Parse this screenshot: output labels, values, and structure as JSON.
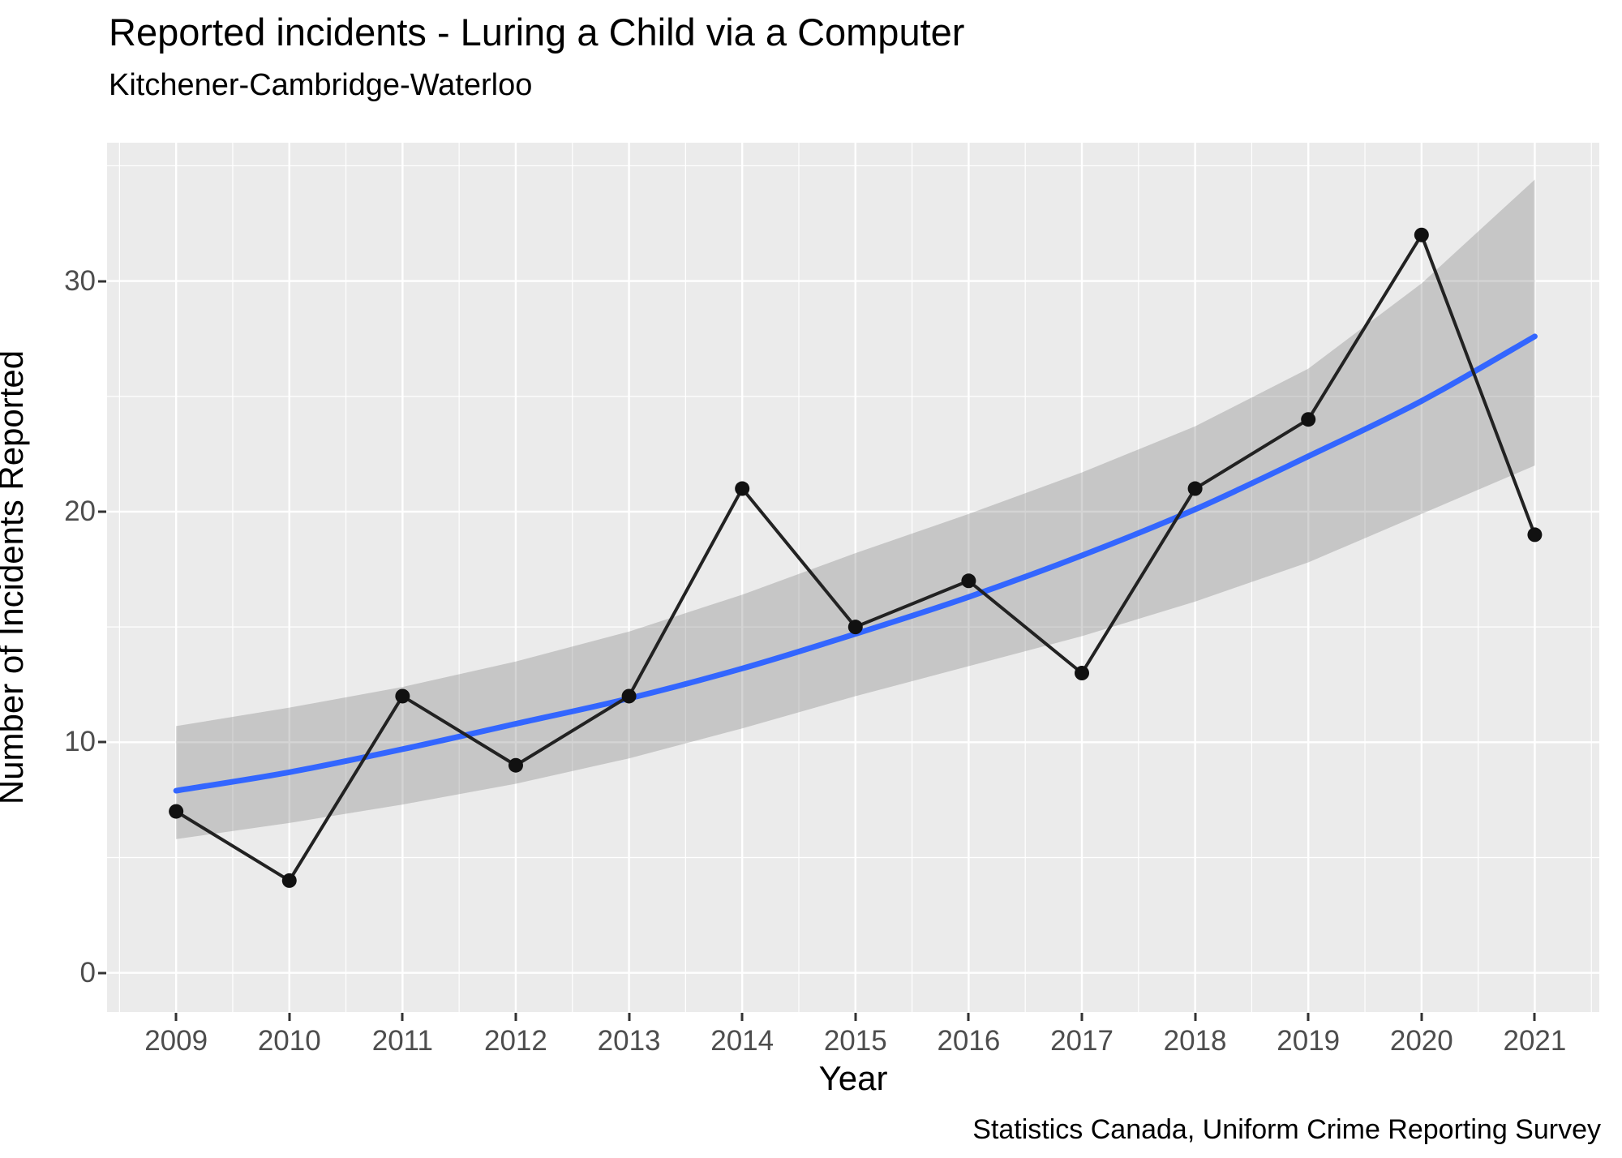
{
  "title": "Reported incidents - Luring a Child via a Computer",
  "subtitle": "Kitchener-Cambridge-Waterloo",
  "caption": "Statistics Canada, Uniform Crime Reporting Survey",
  "chart_data": {
    "type": "line",
    "title": "Reported incidents - Luring a Child via a Computer",
    "subtitle": "Kitchener-Cambridge-Waterloo",
    "xlabel": "Year",
    "ylabel": "Number of Incidents Reported",
    "caption": "Statistics Canada, Uniform Crime Reporting Survey",
    "x": [
      2009,
      2010,
      2011,
      2012,
      2013,
      2014,
      2015,
      2016,
      2017,
      2018,
      2019,
      2020,
      2021
    ],
    "series": [
      {
        "name": "reported-incidents",
        "type": "line+points",
        "color": "#222222",
        "point_color": "#111111",
        "values": [
          7,
          4,
          12,
          9,
          12,
          21,
          15,
          17,
          13,
          21,
          24,
          32,
          19
        ]
      },
      {
        "name": "trend-smooth",
        "type": "smooth",
        "color": "#3366FF",
        "values": [
          7.9,
          8.7,
          9.7,
          10.8,
          11.9,
          13.2,
          14.7,
          16.3,
          18.1,
          20.1,
          22.4,
          24.8,
          27.6
        ]
      },
      {
        "name": "confidence-band",
        "type": "ribbon",
        "color": "rgba(125,125,125,0.33)",
        "upper": [
          10.7,
          11.5,
          12.4,
          13.5,
          14.8,
          16.4,
          18.2,
          19.9,
          21.7,
          23.7,
          26.2,
          29.9,
          34.4
        ],
        "lower": [
          5.8,
          6.5,
          7.3,
          8.2,
          9.3,
          10.6,
          12.0,
          13.3,
          14.6,
          16.1,
          17.8,
          19.9,
          22.0
        ]
      }
    ],
    "x_ticks": [
      2009,
      2010,
      2011,
      2012,
      2013,
      2014,
      2015,
      2016,
      2017,
      2018,
      2019,
      2020,
      2021
    ],
    "y_ticks": [
      0,
      10,
      20,
      30
    ],
    "xlim": [
      2008.39,
      2021.57
    ],
    "ylim": [
      -1.7,
      36.0
    ],
    "grid": "major+minor",
    "legend_position": "none",
    "panel_bg": "#EBEBEB",
    "grid_color": "#FFFFFF",
    "tick_label_color": "#4D4D4D",
    "tick_mark_color": "#333333"
  }
}
